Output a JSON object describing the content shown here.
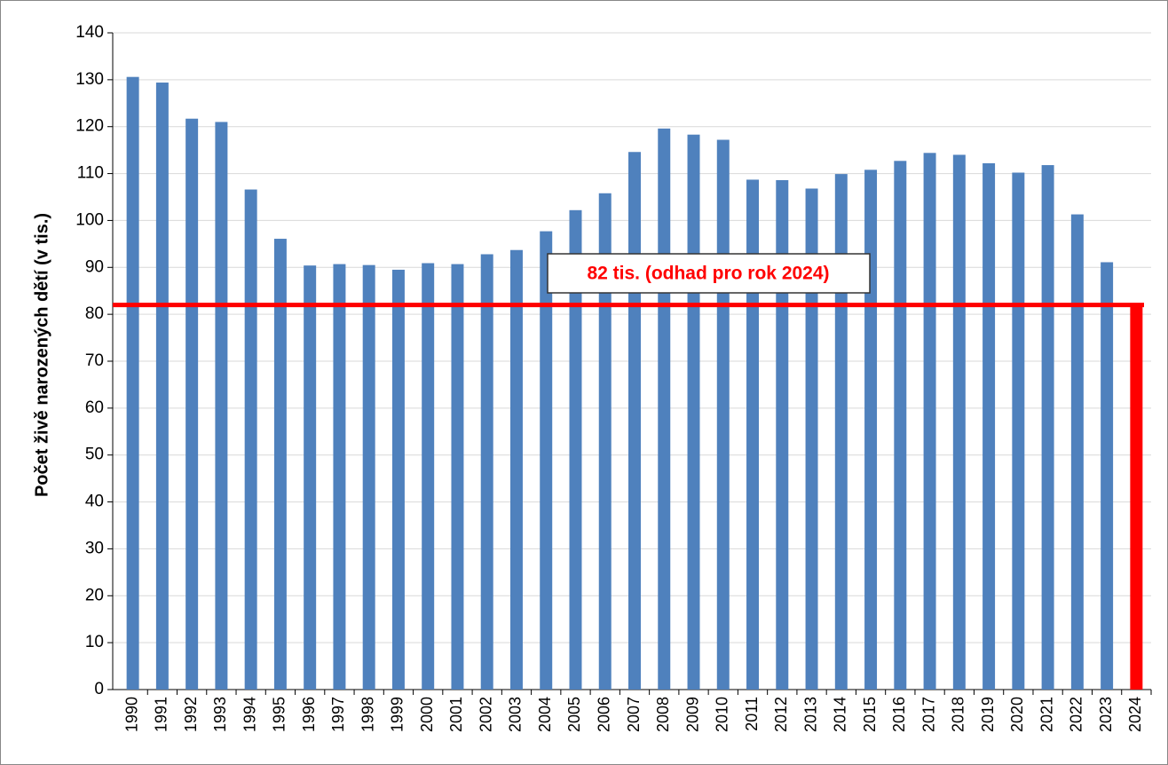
{
  "chart_data": {
    "type": "bar",
    "y_label": "Počet živě narozených dětí (v tis.)",
    "categories": [
      "1990",
      "1991",
      "1992",
      "1993",
      "1994",
      "1995",
      "1996",
      "1997",
      "1998",
      "1999",
      "2000",
      "2001",
      "2002",
      "2003",
      "2004",
      "2005",
      "2006",
      "2007",
      "2008",
      "2009",
      "2010",
      "2011",
      "2012",
      "2013",
      "2014",
      "2015",
      "2016",
      "2017",
      "2018",
      "2019",
      "2020",
      "2021",
      "2022",
      "2023",
      "2024"
    ],
    "values": [
      130.6,
      129.4,
      121.7,
      121.0,
      106.6,
      96.1,
      90.4,
      90.7,
      90.5,
      89.5,
      90.9,
      90.7,
      92.8,
      93.7,
      97.7,
      102.2,
      105.8,
      114.6,
      119.6,
      118.3,
      117.2,
      108.7,
      108.6,
      106.8,
      109.9,
      110.8,
      112.7,
      114.4,
      114.0,
      112.2,
      110.2,
      111.8,
      101.3,
      91.1,
      null
    ],
    "color": "#4f81bd",
    "reference_line": {
      "value": 82,
      "category_index": 34,
      "label": "82 tis. (odhad pro rok 2024)",
      "color": "#ff0000"
    },
    "ylim": [
      0,
      140
    ],
    "yticks": [
      0,
      10,
      20,
      30,
      40,
      50,
      60,
      70,
      80,
      90,
      100,
      110,
      120,
      130,
      140
    ],
    "grid": true
  }
}
